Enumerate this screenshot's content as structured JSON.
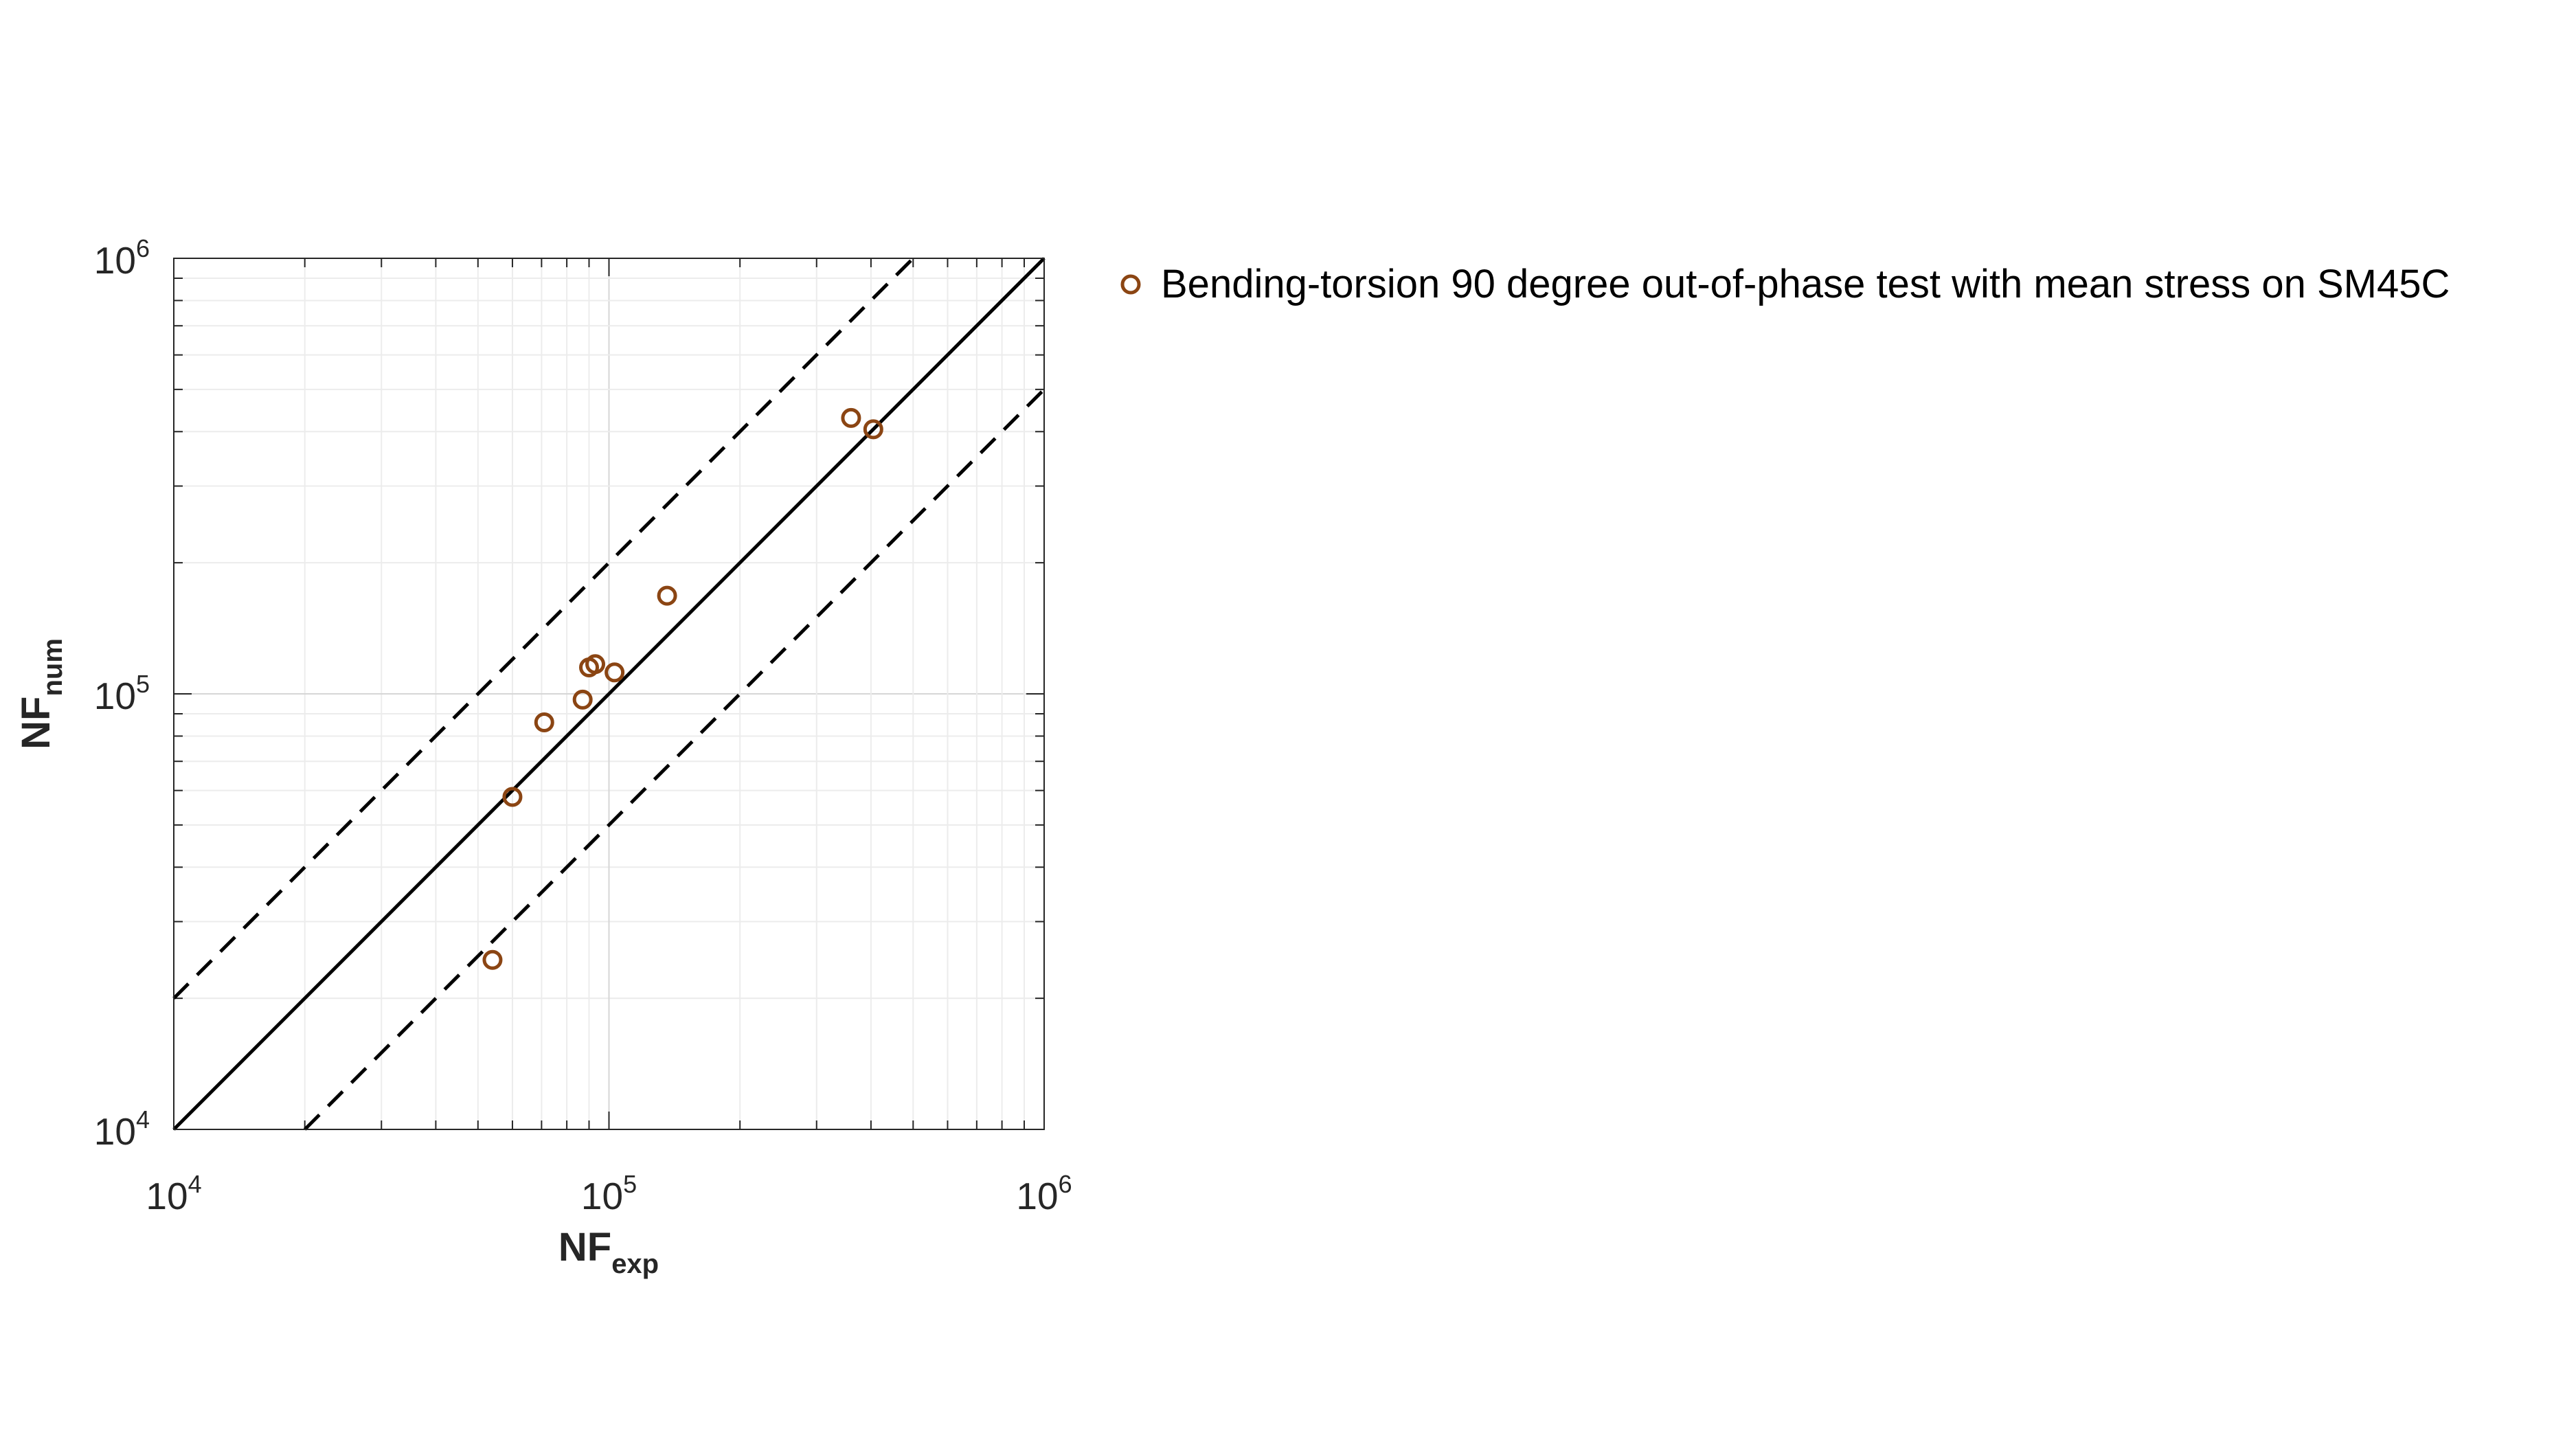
{
  "chart_data": {
    "type": "scatter",
    "title": "",
    "xlabel": {
      "base": "NF",
      "sub": "exp"
    },
    "ylabel": {
      "base": "NF",
      "sub": "num"
    },
    "xscale": "log",
    "yscale": "log",
    "xlim": [
      10000,
      1000000
    ],
    "ylim": [
      10000,
      1000000
    ],
    "xticks": [
      {
        "base": "10",
        "exp": "4",
        "value": 10000
      },
      {
        "base": "10",
        "exp": "5",
        "value": 100000
      },
      {
        "base": "10",
        "exp": "6",
        "value": 1000000
      }
    ],
    "yticks": [
      {
        "base": "10",
        "exp": "4",
        "value": 10000
      },
      {
        "base": "10",
        "exp": "5",
        "value": 100000
      },
      {
        "base": "10",
        "exp": "6",
        "value": 1000000
      }
    ],
    "grid": true,
    "legend_position": "outside-right",
    "reference_lines": [
      {
        "style": "solid",
        "factor": 1
      },
      {
        "style": "dashed",
        "factor": 2
      },
      {
        "style": "dashed",
        "factor": 0.5
      }
    ],
    "series": [
      {
        "name": "Bending-torsion 90 degree out-of-phase test with mean stress on SM45C",
        "color": "#8B4513",
        "marker": "circle-open",
        "points": [
          {
            "x": 54000,
            "y": 24500
          },
          {
            "x": 60000,
            "y": 58000
          },
          {
            "x": 71000,
            "y": 86000
          },
          {
            "x": 87000,
            "y": 97000
          },
          {
            "x": 90000,
            "y": 115000
          },
          {
            "x": 93000,
            "y": 117000
          },
          {
            "x": 103000,
            "y": 112000
          },
          {
            "x": 136000,
            "y": 168000
          },
          {
            "x": 360000,
            "y": 430000
          },
          {
            "x": 405000,
            "y": 405000
          }
        ]
      }
    ]
  }
}
